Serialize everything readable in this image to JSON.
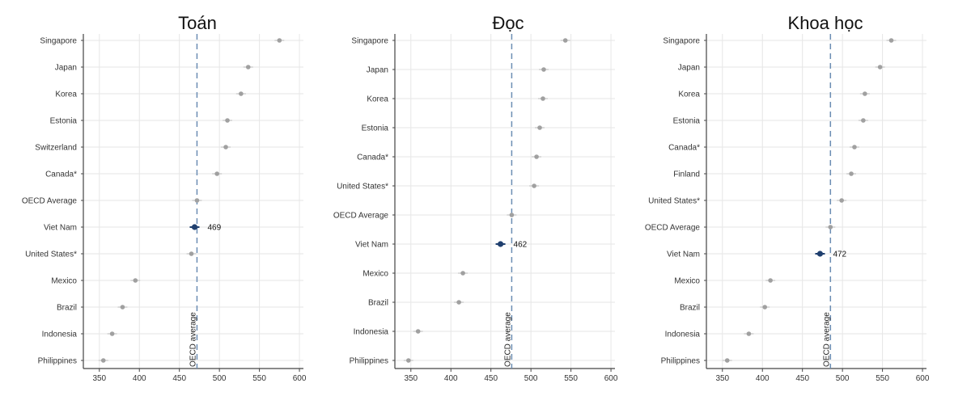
{
  "chart_data": [
    {
      "type": "dot",
      "title": "Toán",
      "categories": [
        "Singapore",
        "Japan",
        "Korea",
        "Estonia",
        "Switzerland",
        "Canada*",
        "OECD Average",
        "Viet Nam",
        "United States*",
        "Mexico",
        "Brazil",
        "Indonesia",
        "Philippines"
      ],
      "values": [
        575,
        536,
        527,
        510,
        508,
        497,
        472,
        469,
        465,
        395,
        379,
        366,
        355
      ],
      "highlight": {
        "category": "Viet Nam",
        "label": "469"
      },
      "reference": {
        "value": 472,
        "label": "OECD average"
      },
      "xlim": [
        330,
        605
      ],
      "xticks": [
        350,
        400,
        450,
        500,
        550,
        600
      ],
      "grid": true
    },
    {
      "type": "dot",
      "title": "Đọc",
      "categories": [
        "Singapore",
        "Japan",
        "Korea",
        "Estonia",
        "Canada*",
        "United States*",
        "OECD Average",
        "Viet Nam",
        "Mexico",
        "Brazil",
        "Indonesia",
        "Philippines"
      ],
      "values": [
        543,
        516,
        515,
        511,
        507,
        504,
        476,
        462,
        415,
        410,
        359,
        347
      ],
      "highlight": {
        "category": "Viet Nam",
        "label": "462"
      },
      "reference": {
        "value": 476,
        "label": "OECD average"
      },
      "xlim": [
        330,
        605
      ],
      "xticks": [
        350,
        400,
        450,
        500,
        550,
        600
      ],
      "grid": true
    },
    {
      "type": "dot",
      "title": "Khoa học",
      "categories": [
        "Singapore",
        "Japan",
        "Korea",
        "Estonia",
        "Canada*",
        "Finland",
        "United States*",
        "OECD Average",
        "Viet Nam",
        "Mexico",
        "Brazil",
        "Indonesia",
        "Philippines"
      ],
      "values": [
        561,
        547,
        528,
        526,
        515,
        511,
        499,
        485,
        472,
        410,
        403,
        383,
        356
      ],
      "highlight": {
        "category": "Viet Nam",
        "label": "472"
      },
      "reference": {
        "value": 485,
        "label": "OECD average"
      },
      "xlim": [
        330,
        605
      ],
      "xticks": [
        350,
        400,
        450,
        500,
        550,
        600
      ],
      "grid": true
    }
  ],
  "colors": {
    "dot": "#a0a0a0",
    "highlight": "#1f3f6e",
    "reference": "#6b8db3"
  }
}
